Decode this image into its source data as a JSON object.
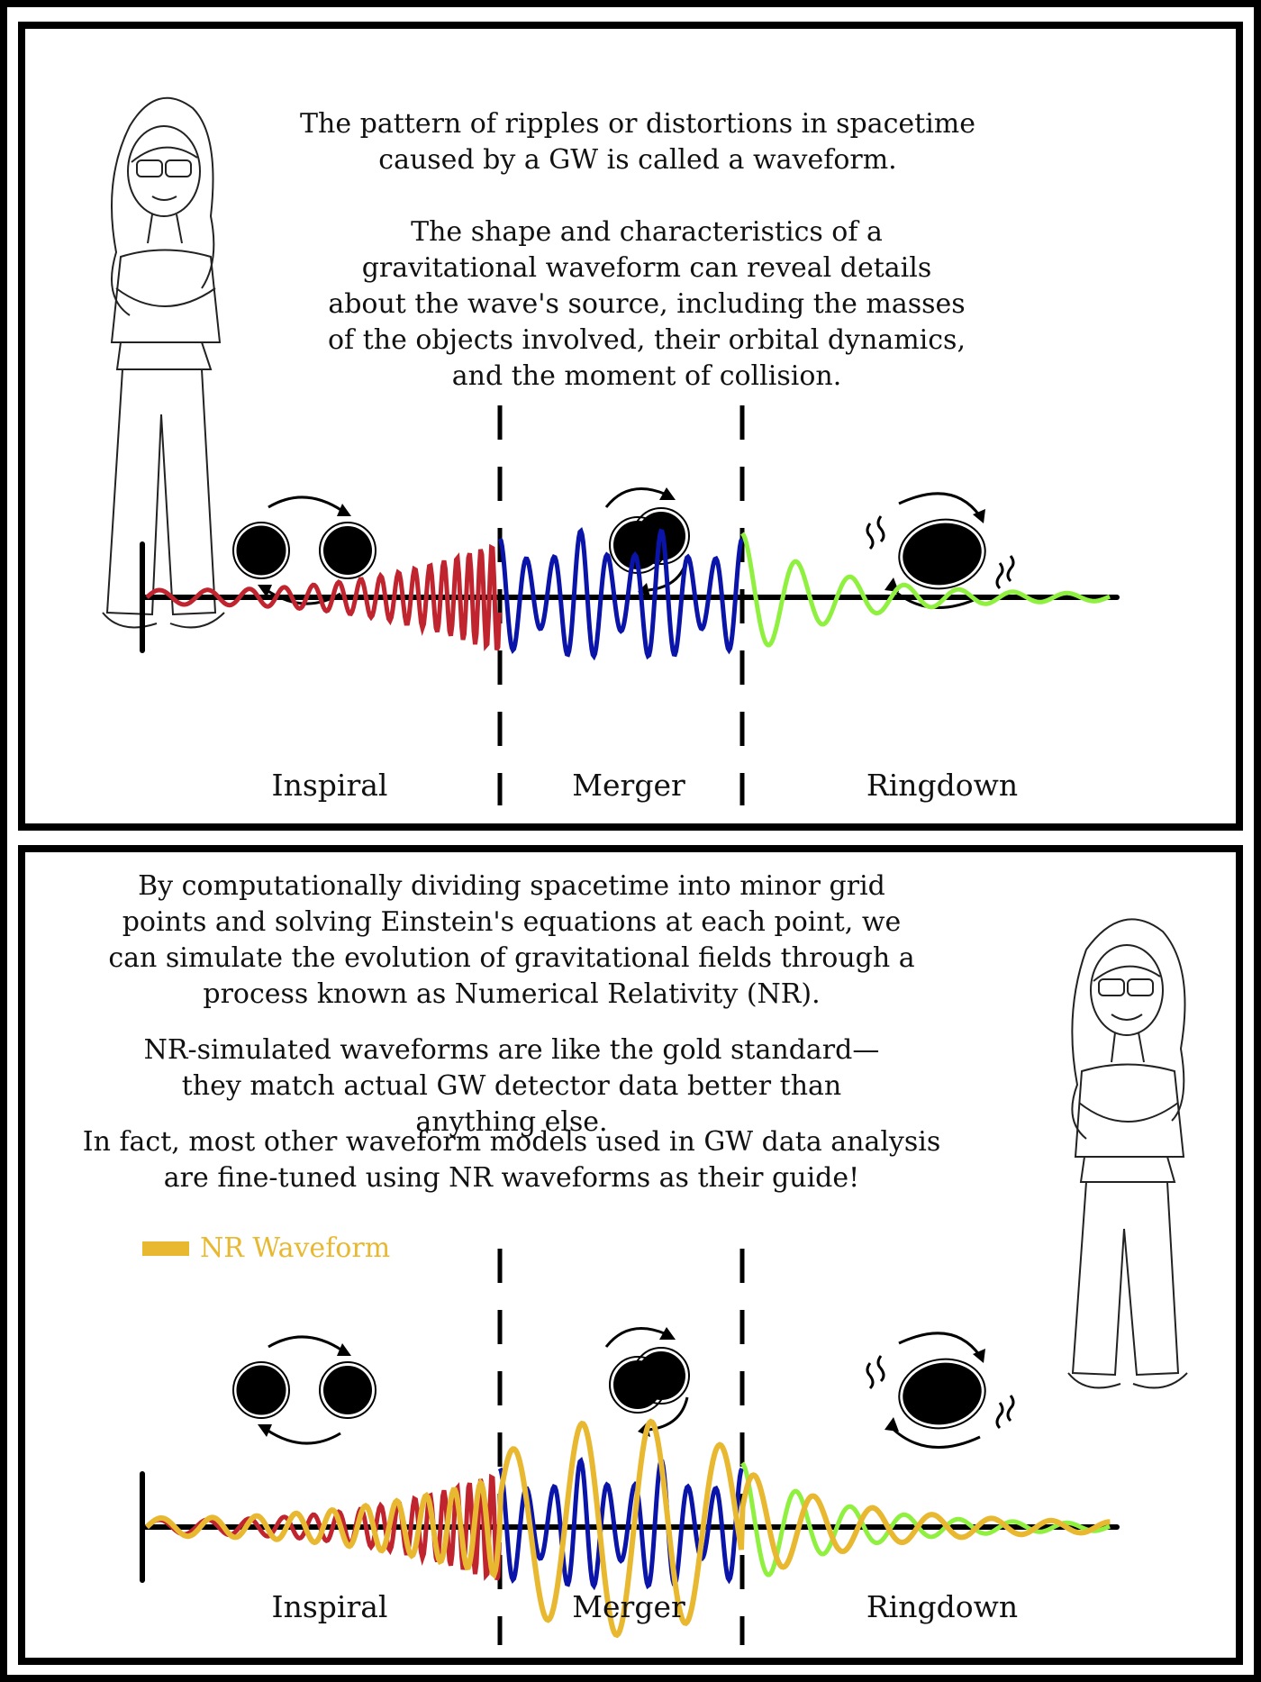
{
  "top_panel": {
    "paragraph_1": "The pattern of ripples or distortions in spacetime caused by a GW is called a waveform.",
    "paragraph_2": "The shape and characteristics of a gravitational waveform can reveal details about the wave's source, including the masses of the objects involved, their orbital dynamics, and the moment of collision.",
    "labels": {
      "inspiral": "Inspiral",
      "merger": "Merger",
      "ringdown": "Ringdown"
    }
  },
  "bottom_panel": {
    "paragraph_1": "By computationally dividing spacetime into minor grid points and solving Einstein's equations at each point, we can simulate the evolution of gravitational fields through a process known as Numerical Relativity (NR).",
    "paragraph_2": "NR-simulated waveforms are like the gold standard—they match actual GW detector data better than anything else.",
    "paragraph_3": "In fact, most other waveform models used in GW data analysis are fine-tuned using NR waveforms as their guide!",
    "legend": "NR Waveform",
    "labels": {
      "inspiral": "Inspiral",
      "merger": "Merger",
      "ringdown": "Ringdown"
    }
  },
  "colors": {
    "inspiral": "#c0242e",
    "merger": "#0a14a8",
    "ringdown": "#8ff040",
    "nr_waveform": "#e8b830"
  }
}
